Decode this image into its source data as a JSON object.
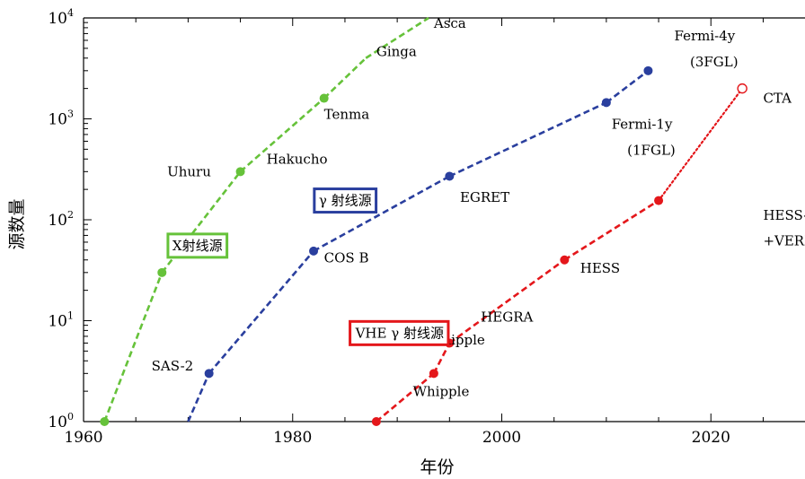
{
  "chart_data": {
    "type": "line",
    "xlabel": "年份",
    "ylabel": "源数量",
    "xlim": [
      1960,
      2029
    ],
    "ylim": [
      1,
      10000
    ],
    "yscale": "log",
    "x_ticks": [
      "1960",
      "1980",
      "2000",
      "2020"
    ],
    "y_ticks": [
      {
        "base": "10",
        "exp": "0"
      },
      {
        "base": "10",
        "exp": "1"
      },
      {
        "base": "10",
        "exp": "2"
      },
      {
        "base": "10",
        "exp": "3"
      },
      {
        "base": "10",
        "exp": "4"
      }
    ],
    "colors": {
      "x_ray": "#66c23a",
      "gamma": "#2a3f9e",
      "vhe": "#e4171b"
    },
    "series": [
      {
        "name": "X射线源",
        "key": "x_ray",
        "points": [
          {
            "x": 1962,
            "y": 1
          },
          {
            "x": 1967.5,
            "y": 30,
            "label": "Uhuru"
          },
          {
            "x": 1975,
            "y": 300,
            "label": "Hakucho"
          },
          {
            "x": 1983,
            "y": 1600,
            "label": "Tenma"
          },
          {
            "x": 1987,
            "y": 4000,
            "label": "Ginga",
            "marker": false
          },
          {
            "x": 1993,
            "y": 10000,
            "label": "Asca",
            "marker": false
          }
        ]
      },
      {
        "name": "γ 射线源",
        "key": "gamma",
        "points": [
          {
            "x": 1970,
            "y": 1,
            "marker": false
          },
          {
            "x": 1972,
            "y": 3,
            "label": "SAS-2"
          },
          {
            "x": 1982,
            "y": 49,
            "label": "COS B"
          },
          {
            "x": 1995,
            "y": 270,
            "label": "EGRET"
          },
          {
            "x": 2010,
            "y": 1450,
            "label": "Fermi-1y (1FGL)"
          },
          {
            "x": 2014,
            "y": 3000,
            "label": "Fermi-4y (3FGL)"
          }
        ]
      },
      {
        "name": "VHE γ 射线源",
        "key": "vhe",
        "points": [
          {
            "x": 1988,
            "y": 1,
            "label": "Whipple"
          },
          {
            "x": 1993.5,
            "y": 3,
            "label": "Whipple"
          },
          {
            "x": 1995,
            "y": 6,
            "label": "HEGRA"
          },
          {
            "x": 2006,
            "y": 40,
            "label": "HESS"
          },
          {
            "x": 2015,
            "y": 155,
            "label": "HESS-II+MAGIC-II +VERITAS"
          },
          {
            "x": 2023,
            "y": 2000,
            "label": "CTA",
            "projected": true
          }
        ]
      }
    ],
    "annotations": [
      {
        "text": "Asca",
        "x": 1993.5,
        "y": 8000
      },
      {
        "text": "Ginga",
        "x": 1988,
        "y": 4200
      },
      {
        "text": "Tenma",
        "x": 1983,
        "y": 1000
      },
      {
        "text": "Hakucho",
        "x": 1977.5,
        "y": 360
      },
      {
        "text": "Uhuru",
        "x": 1968,
        "y": 270
      },
      {
        "text": "SAS-2",
        "x": 1966.5,
        "y": 3.2
      },
      {
        "text": "COS B",
        "x": 1983,
        "y": 38
      },
      {
        "text": "EGRET",
        "x": 1996,
        "y": 150
      },
      {
        "text": "Fermi-1y",
        "x": 2010.5,
        "y": 800
      },
      {
        "text": "(1FGL)",
        "x": 2012,
        "y": 440
      },
      {
        "text": "Fermi-4y",
        "x": 2016.5,
        "y": 6000
      },
      {
        "text": "(3FGL)",
        "x": 2018,
        "y": 3300
      },
      {
        "text": "CTA",
        "x": 2025,
        "y": 1450,
        "color": "vhe"
      },
      {
        "text": "Whipple",
        "x": 1993,
        "y": 5.8
      },
      {
        "text": "Whipple",
        "x": 1991.5,
        "y": 1.8
      },
      {
        "text": "HEGRA",
        "x": 1998,
        "y": 9.8
      },
      {
        "text": "HESS",
        "x": 2007.5,
        "y": 30
      },
      {
        "text": "HESS-II+MAGIC-II",
        "x": 2025,
        "y": 100
      },
      {
        "text": "+VERITAS",
        "x": 2025,
        "y": 56
      }
    ],
    "boxes": [
      {
        "text": "X射线源",
        "key": "x_ray",
        "x": 1968.5,
        "y": 50
      },
      {
        "text": "γ 射线源",
        "key": "gamma",
        "x": 1982.5,
        "y": 140
      },
      {
        "text": "VHE γ 射线源",
        "key": "vhe",
        "x": 1986,
        "y": 6.8
      }
    ]
  }
}
